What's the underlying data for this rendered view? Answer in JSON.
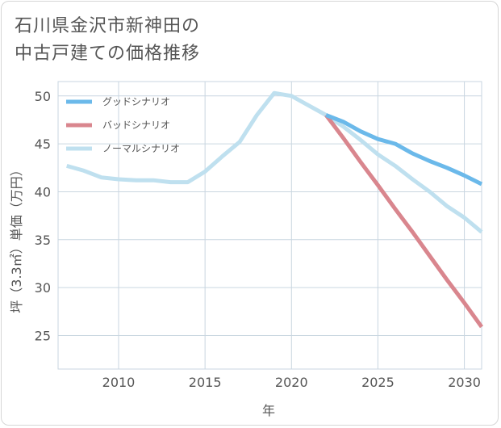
{
  "title": {
    "line1": "石川県金沢市新神田の",
    "line2": "中古戸建ての価格推移"
  },
  "colors": {
    "good": "#6bb9ea",
    "bad": "#d9868e",
    "normal": "#bfe0ef",
    "grid": "#c9d6e0",
    "axis": "#555555"
  },
  "chart_data": {
    "type": "line",
    "xlabel": "年",
    "ylabel": "坪（3.3㎡）単価（万円）",
    "xlim": [
      2006.5,
      2031
    ],
    "ylim": [
      21.5,
      51.5
    ],
    "xticks": [
      2010,
      2015,
      2020,
      2025,
      2030
    ],
    "yticks": [
      25,
      30,
      35,
      40,
      45,
      50
    ],
    "grid": true,
    "legend_position": "top-left",
    "series": [
      {
        "name": "グッドシナリオ",
        "color": "#6bb9ea",
        "points": [
          [
            2022,
            48.0
          ],
          [
            2023,
            47.3
          ],
          [
            2024,
            46.3
          ],
          [
            2025,
            45.5
          ],
          [
            2026,
            45.0
          ],
          [
            2027,
            44.0
          ],
          [
            2028,
            43.2
          ],
          [
            2029,
            42.5
          ],
          [
            2030,
            41.7
          ],
          [
            2031,
            40.8
          ]
        ]
      },
      {
        "name": "バッドシナリオ",
        "color": "#d9868e",
        "points": [
          [
            2022,
            48.0
          ],
          [
            2023,
            45.6
          ],
          [
            2024,
            43.1
          ],
          [
            2025,
            40.7
          ],
          [
            2026,
            38.2
          ],
          [
            2027,
            35.8
          ],
          [
            2028,
            33.3
          ],
          [
            2029,
            30.8
          ],
          [
            2030,
            28.4
          ],
          [
            2031,
            25.9
          ]
        ]
      },
      {
        "name": "ノーマルシナリオ",
        "color": "#bfe0ef",
        "points": [
          [
            2007,
            42.7
          ],
          [
            2008,
            42.2
          ],
          [
            2009,
            41.5
          ],
          [
            2010,
            41.3
          ],
          [
            2011,
            41.2
          ],
          [
            2012,
            41.2
          ],
          [
            2013,
            41.0
          ],
          [
            2014,
            41.0
          ],
          [
            2015,
            42.1
          ],
          [
            2016,
            43.7
          ],
          [
            2017,
            45.2
          ],
          [
            2018,
            48.0
          ],
          [
            2019,
            50.3
          ],
          [
            2020,
            50.0
          ],
          [
            2021,
            49.0
          ],
          [
            2022,
            48.0
          ],
          [
            2023,
            46.8
          ],
          [
            2024,
            45.4
          ],
          [
            2025,
            43.9
          ],
          [
            2026,
            42.7
          ],
          [
            2027,
            41.3
          ],
          [
            2028,
            40.0
          ],
          [
            2029,
            38.5
          ],
          [
            2030,
            37.3
          ],
          [
            2031,
            35.8
          ]
        ]
      }
    ]
  }
}
